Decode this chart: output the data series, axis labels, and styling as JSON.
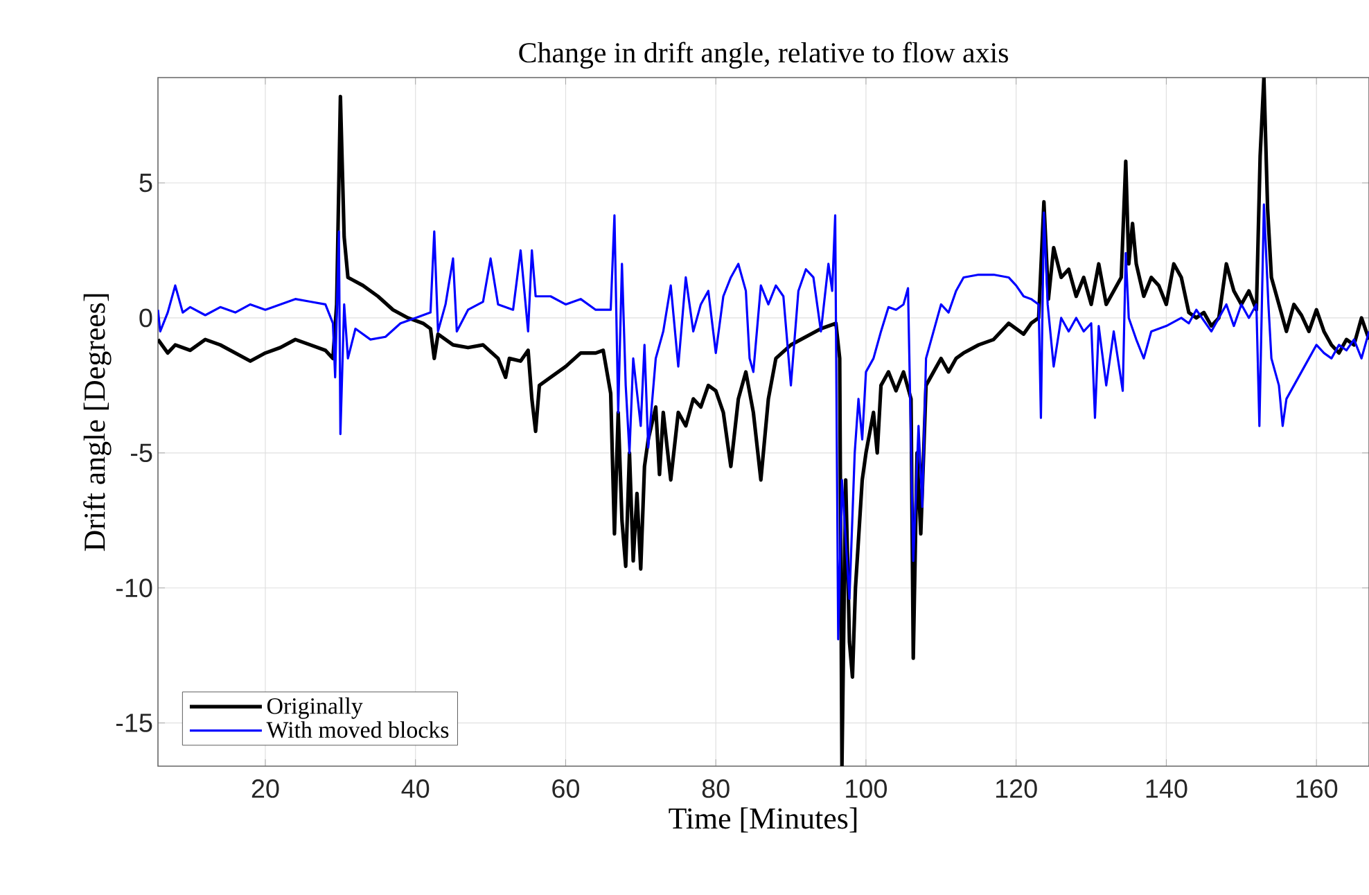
{
  "chart_data": {
    "type": "line",
    "title": "Change in drift angle, relative to flow axis",
    "xlabel": "Time [Minutes]",
    "ylabel": "Drift angle [Degrees]",
    "xlim": [
      5.7,
      167
    ],
    "ylim": [
      -16.6,
      8.9
    ],
    "xticks": [
      20,
      40,
      60,
      80,
      100,
      120,
      140,
      160
    ],
    "yticks": [
      -15,
      -10,
      -5,
      0,
      5
    ],
    "grid": true,
    "legend": "bottom left",
    "series": [
      {
        "name": "Originally",
        "color": "#000000",
        "x": [
          5.7,
          7,
          8,
          10,
          12,
          14,
          16,
          18,
          20,
          22,
          24,
          26,
          28,
          29,
          29.5,
          30,
          30.5,
          31,
          33,
          35,
          37,
          39,
          41,
          42,
          42.5,
          43,
          45,
          47,
          49,
          51,
          52,
          52.5,
          54,
          55,
          55.5,
          56,
          56.5,
          58,
          60,
          62,
          64,
          65,
          66,
          66.5,
          67,
          67.5,
          68,
          68.5,
          69,
          69.5,
          70,
          70.5,
          71,
          72,
          72.5,
          73,
          74,
          75,
          76,
          77,
          78,
          79,
          80,
          81,
          82,
          83,
          84,
          85,
          86,
          87,
          88,
          90,
          92,
          94,
          96,
          96.5,
          96.8,
          97.3,
          97.8,
          98.2,
          98.6,
          99.5,
          100,
          101,
          101.5,
          102,
          103,
          104,
          105,
          106,
          106.3,
          106.8,
          107.3,
          108,
          109,
          110,
          111,
          112,
          113,
          115,
          117,
          119,
          121,
          122,
          123,
          123.7,
          124.3,
          125,
          126,
          127,
          128,
          129,
          130,
          131,
          132,
          133,
          134,
          134.6,
          135,
          135.5,
          136,
          137,
          138,
          139,
          140,
          141,
          142,
          143,
          144,
          145,
          146,
          147,
          148,
          149,
          150,
          151,
          152,
          152.5,
          153,
          153.5,
          154,
          155,
          156,
          157,
          158,
          159,
          160,
          161,
          162,
          163,
          164,
          165,
          166,
          167
        ],
        "values": [
          -0.8,
          -1.3,
          -1.0,
          -1.2,
          -0.8,
          -1.0,
          -1.3,
          -1.6,
          -1.3,
          -1.1,
          -0.8,
          -1.0,
          -1.2,
          -1.5,
          0.5,
          8.2,
          3.0,
          1.5,
          1.2,
          0.8,
          0.3,
          0,
          -0.2,
          -0.4,
          -1.5,
          -0.6,
          -1.0,
          -1.1,
          -1.0,
          -1.5,
          -2.2,
          -1.5,
          -1.6,
          -1.2,
          -3.0,
          -4.2,
          -2.5,
          -2.2,
          -1.8,
          -1.3,
          -1.3,
          -1.2,
          -2.8,
          -8.0,
          -3.5,
          -7.5,
          -9.2,
          -5.0,
          -9.0,
          -6.5,
          -9.3,
          -5.5,
          -4.5,
          -3.3,
          -5.8,
          -3.5,
          -6.0,
          -3.5,
          -4.0,
          -3.0,
          -3.3,
          -2.5,
          -2.7,
          -3.5,
          -5.5,
          -3.0,
          -2.0,
          -3.5,
          -6.0,
          -3.0,
          -1.5,
          -1.0,
          -0.7,
          -0.4,
          -0.2,
          -1.5,
          -16.6,
          -6,
          -12,
          -13.3,
          -10,
          -6,
          -5,
          -3.5,
          -5.0,
          -2.5,
          -2.0,
          -2.7,
          -2.0,
          -3.0,
          -12.6,
          -5.0,
          -8.0,
          -2.5,
          -2.0,
          -1.5,
          -2.0,
          -1.5,
          -1.3,
          -1.0,
          -0.8,
          -0.2,
          -0.6,
          -0.2,
          0.0,
          4.3,
          0.7,
          2.6,
          1.5,
          1.8,
          0.8,
          1.5,
          0.5,
          2.0,
          0.5,
          1.0,
          1.5,
          5.8,
          2.0,
          3.5,
          2.0,
          0.8,
          1.5,
          1.2,
          0.5,
          2.0,
          1.5,
          0.2,
          0.0,
          0.2,
          -0.3,
          0.0,
          2.0,
          1.0,
          0.5,
          1.0,
          0.3,
          6.0,
          8.9,
          4.0,
          1.5,
          0.5,
          -0.5,
          0.5,
          0.1,
          -0.5,
          0.3,
          -0.5,
          -1.0,
          -1.3,
          -0.8,
          -1.0,
          0.0,
          -0.8
        ]
      },
      {
        "name": "With moved blocks",
        "color": "#0000ff",
        "x": [
          5.7,
          6,
          7,
          8,
          9,
          10,
          12,
          14,
          16,
          18,
          20,
          22,
          24,
          26,
          28,
          29,
          29.3,
          29.8,
          30,
          30.5,
          31,
          32,
          34,
          36,
          38,
          40,
          42,
          42.5,
          43,
          44,
          45,
          45.5,
          47,
          49,
          50,
          51,
          53,
          54,
          55,
          55.5,
          56,
          58,
          60,
          62,
          64,
          66,
          66.5,
          67,
          67.5,
          68,
          68.5,
          69,
          70,
          70.5,
          71,
          72,
          73,
          74,
          75,
          76,
          77,
          78,
          79,
          80,
          81,
          82,
          83,
          84,
          84.5,
          85,
          86,
          87,
          88,
          89,
          90,
          91,
          92,
          93,
          94,
          95,
          95.5,
          95.9,
          96.3,
          96.8,
          97.8,
          98.5,
          99,
          99.5,
          100,
          101,
          102,
          103,
          104,
          105,
          105.6,
          106.3,
          107,
          107.5,
          108,
          109,
          110,
          111,
          112,
          113,
          115,
          117,
          119,
          120,
          121,
          122,
          123,
          123.3,
          123.7,
          124.2,
          125,
          126,
          127,
          128,
          129,
          130,
          130.5,
          131,
          132,
          133,
          134.2,
          134.6,
          135,
          136,
          137,
          138,
          140,
          142,
          143,
          144,
          146,
          147,
          148,
          149,
          150,
          151,
          152,
          152.4,
          153,
          153.6,
          154,
          155,
          155.5,
          156,
          157,
          158,
          159,
          160,
          161,
          162,
          163,
          164,
          165,
          166,
          167
        ],
        "values": [
          0.3,
          -0.5,
          0.2,
          1.2,
          0.2,
          0.4,
          0.1,
          0.4,
          0.2,
          0.5,
          0.3,
          0.5,
          0.7,
          0.6,
          0.5,
          -0.2,
          -2.2,
          3.2,
          -4.3,
          0.5,
          -1.5,
          -0.4,
          -0.8,
          -0.7,
          -0.2,
          0.0,
          0.2,
          3.2,
          -0.5,
          0.5,
          2.2,
          -0.5,
          0.3,
          0.6,
          2.2,
          0.5,
          0.3,
          2.5,
          -0.5,
          2.5,
          0.8,
          0.8,
          0.5,
          0.7,
          0.3,
          0.3,
          3.8,
          -3.5,
          2.0,
          -2.5,
          -5.0,
          -1.5,
          -4.0,
          -1.0,
          -4.8,
          -1.5,
          -0.5,
          1.2,
          -1.8,
          1.5,
          -0.5,
          0.5,
          1.0,
          -1.3,
          0.8,
          1.5,
          2.0,
          1.0,
          -1.5,
          -2.0,
          1.2,
          0.5,
          1.2,
          0.8,
          -2.5,
          1.0,
          1.8,
          1.5,
          -0.5,
          2.0,
          1.0,
          3.8,
          -11.9,
          -6,
          -10.4,
          -5,
          -3,
          -4.5,
          -2.0,
          -1.5,
          -0.5,
          0.4,
          0.3,
          0.5,
          1.1,
          -9.0,
          -4,
          -7.0,
          -1.5,
          -0.5,
          0.5,
          0.2,
          1.0,
          1.5,
          1.6,
          1.6,
          1.5,
          1.2,
          0.8,
          0.7,
          0.5,
          -3.7,
          3.9,
          0.5,
          -1.8,
          0.0,
          -0.5,
          0.0,
          -0.5,
          -0.2,
          -3.7,
          -0.3,
          -2.5,
          -0.5,
          -2.7,
          2.4,
          0,
          -0.8,
          -1.5,
          -0.5,
          -0.3,
          0.0,
          -0.2,
          0.3,
          -0.5,
          0.0,
          0.5,
          -0.3,
          0.5,
          0.0,
          0.5,
          -4.0,
          4.2,
          0.5,
          -1.5,
          -2.5,
          -4.0,
          -3.0,
          -2.5,
          -2.0,
          -1.5,
          -1.0,
          -1.3,
          -1.5,
          -1.0,
          -1.2,
          -0.8,
          -1.5,
          -0.5
        ]
      }
    ]
  }
}
